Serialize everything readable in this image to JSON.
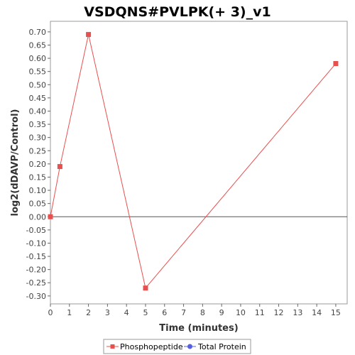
{
  "chart_data": {
    "type": "line",
    "title": "VSDQNS#PVLPK(+ 3)_v1",
    "xlabel": "Time (minutes)",
    "ylabel": "log2(dDAVP/Control)",
    "xlim": [
      0,
      15.6
    ],
    "ylim": [
      -0.33,
      0.74
    ],
    "x_ticks": [
      0,
      1,
      2,
      3,
      4,
      5,
      6,
      7,
      8,
      9,
      10,
      11,
      12,
      13,
      14,
      15
    ],
    "y_ticks": [
      -0.3,
      -0.25,
      -0.2,
      -0.15,
      -0.1,
      -0.05,
      0.0,
      0.05,
      0.1,
      0.15,
      0.2,
      0.25,
      0.3,
      0.35,
      0.4,
      0.45,
      0.5,
      0.55,
      0.6,
      0.65,
      0.7
    ],
    "zero_line": true,
    "grid": false,
    "legend_position": "bottom",
    "series": [
      {
        "name": "Phosphopeptide",
        "color": "#e8504f",
        "marker": "square",
        "points": [
          {
            "x": 0,
            "y": 0.0
          },
          {
            "x": 0.5,
            "y": 0.19
          },
          {
            "x": 2,
            "y": 0.69
          },
          {
            "x": 5,
            "y": -0.27
          },
          {
            "x": 15,
            "y": 0.58
          }
        ]
      },
      {
        "name": "Total Protein",
        "color": "#5560e0",
        "marker": "circle",
        "points": []
      }
    ]
  }
}
